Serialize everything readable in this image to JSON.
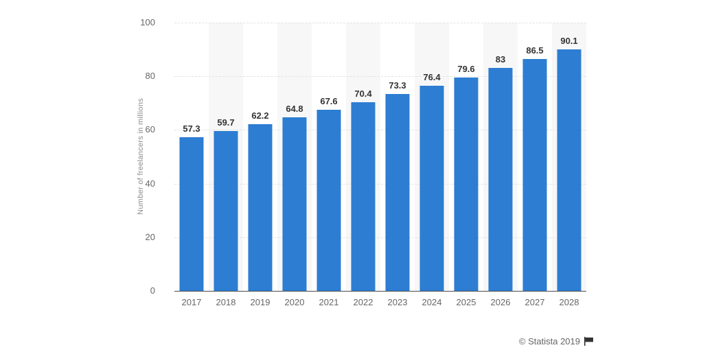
{
  "chart_data": {
    "type": "bar",
    "title": "",
    "xlabel": "",
    "ylabel": "Number of freelancers in millions",
    "categories": [
      "2017",
      "2018",
      "2019",
      "2020",
      "2021",
      "2022",
      "2023",
      "2024",
      "2025",
      "2026",
      "2027",
      "2028"
    ],
    "values": [
      57.3,
      59.7,
      62.2,
      64.8,
      67.6,
      70.4,
      73.3,
      76.4,
      79.6,
      83,
      86.5,
      90.1
    ],
    "value_labels": [
      "57.3",
      "59.7",
      "62.2",
      "64.8",
      "67.6",
      "70.4",
      "73.3",
      "76.4",
      "79.6",
      "83",
      "86.5",
      "90.1"
    ],
    "ylim": [
      0,
      100
    ],
    "yticks": [
      0,
      20,
      40,
      60,
      80,
      100
    ],
    "grid": "horizontal-dashed",
    "legend": "none",
    "alt_column_bands": "behind even years (2018, 2020, 2022, 2024, 2026, 2028)",
    "colors": {
      "bar": "#2d7dd2",
      "band": "#f7f7f7",
      "gridline": "#e2e2e2",
      "axis_line": "#4d4d4d",
      "tick_text": "#666666",
      "value_text": "#333333",
      "ylabel_text": "#8c8c8c"
    }
  },
  "footer": {
    "credit": "© Statista 2019",
    "flag_icon": "flag"
  }
}
